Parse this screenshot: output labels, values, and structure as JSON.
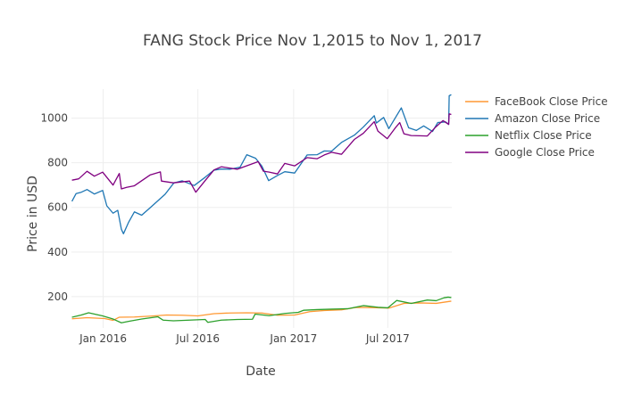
{
  "chart_data": {
    "type": "line",
    "title": "FANG Stock Price Nov 1,2015 to Nov 1, 2017",
    "xlabel": "Date",
    "ylabel": "Price in USD",
    "xlim": [
      "2015-11-01",
      "2017-11-01"
    ],
    "ylim": [
      60,
      1130
    ],
    "x_ticks": [
      {
        "date": "2016-01-01",
        "label": "Jan 2016"
      },
      {
        "date": "2016-07-01",
        "label": "Jul 2016"
      },
      {
        "date": "2017-01-01",
        "label": "Jan 2017"
      },
      {
        "date": "2017-07-01",
        "label": "Jul 2017"
      }
    ],
    "y_ticks": [
      200,
      400,
      600,
      800,
      1000
    ],
    "grid": true,
    "legend_position": "top-right",
    "series": [
      {
        "name": "FaceBook Close Price",
        "color": "#ff9933",
        "points": [
          [
            "2015-11-02",
            101
          ],
          [
            "2015-12-01",
            106
          ],
          [
            "2016-01-04",
            102
          ],
          [
            "2016-01-20",
            94
          ],
          [
            "2016-02-01",
            108
          ],
          [
            "2016-03-01",
            109
          ],
          [
            "2016-04-01",
            113
          ],
          [
            "2016-05-02",
            118
          ],
          [
            "2016-06-01",
            117
          ],
          [
            "2016-07-01",
            114
          ],
          [
            "2016-08-01",
            124
          ],
          [
            "2016-09-01",
            127
          ],
          [
            "2016-10-03",
            128
          ],
          [
            "2016-11-01",
            127
          ],
          [
            "2016-12-01",
            117
          ],
          [
            "2017-01-03",
            118
          ],
          [
            "2017-02-01",
            133
          ],
          [
            "2017-03-01",
            138
          ],
          [
            "2017-04-03",
            141
          ],
          [
            "2017-05-01",
            152
          ],
          [
            "2017-06-01",
            151
          ],
          [
            "2017-07-03",
            149
          ],
          [
            "2017-08-01",
            170
          ],
          [
            "2017-09-01",
            172
          ],
          [
            "2017-10-02",
            170
          ],
          [
            "2017-10-31",
            180
          ]
        ]
      },
      {
        "name": "Amazon Close Price",
        "color": "#1f77b4",
        "points": [
          [
            "2015-11-02",
            627
          ],
          [
            "2015-11-10",
            662
          ],
          [
            "2015-11-20",
            668
          ],
          [
            "2015-12-01",
            680
          ],
          [
            "2015-12-15",
            660
          ],
          [
            "2015-12-31",
            676
          ],
          [
            "2016-01-08",
            607
          ],
          [
            "2016-01-20",
            574
          ],
          [
            "2016-01-29",
            587
          ],
          [
            "2016-02-05",
            502
          ],
          [
            "2016-02-09",
            482
          ],
          [
            "2016-02-19",
            534
          ],
          [
            "2016-03-01",
            580
          ],
          [
            "2016-03-15",
            565
          ],
          [
            "2016-04-01",
            600
          ],
          [
            "2016-04-29",
            659
          ],
          [
            "2016-05-16",
            710
          ],
          [
            "2016-06-01",
            719
          ],
          [
            "2016-06-24",
            698
          ],
          [
            "2016-07-15",
            735
          ],
          [
            "2016-08-01",
            767
          ],
          [
            "2016-08-15",
            772
          ],
          [
            "2016-09-01",
            771
          ],
          [
            "2016-09-20",
            780
          ],
          [
            "2016-10-03",
            836
          ],
          [
            "2016-10-20",
            820
          ],
          [
            "2016-11-01",
            785
          ],
          [
            "2016-11-14",
            720
          ],
          [
            "2016-12-01",
            743
          ],
          [
            "2016-12-15",
            760
          ],
          [
            "2017-01-03",
            754
          ],
          [
            "2017-01-27",
            835
          ],
          [
            "2017-02-15",
            836
          ],
          [
            "2017-03-01",
            853
          ],
          [
            "2017-03-15",
            852
          ],
          [
            "2017-04-03",
            891
          ],
          [
            "2017-04-28",
            924
          ],
          [
            "2017-05-15",
            960
          ],
          [
            "2017-06-05",
            1011
          ],
          [
            "2017-06-09",
            978
          ],
          [
            "2017-06-23",
            1003
          ],
          [
            "2017-07-03",
            953
          ],
          [
            "2017-07-27",
            1046
          ],
          [
            "2017-08-10",
            957
          ],
          [
            "2017-08-25",
            945
          ],
          [
            "2017-09-08",
            965
          ],
          [
            "2017-09-25",
            940
          ],
          [
            "2017-10-05",
            980
          ],
          [
            "2017-10-20",
            983
          ],
          [
            "2017-10-26",
            972
          ],
          [
            "2017-10-27",
            1100
          ],
          [
            "2017-10-31",
            1105
          ]
        ]
      },
      {
        "name": "Netflix Close Price",
        "color": "#2ca02c",
        "points": [
          [
            "2015-11-02",
            108
          ],
          [
            "2015-11-20",
            118
          ],
          [
            "2015-12-04",
            128
          ],
          [
            "2015-12-31",
            114
          ],
          [
            "2016-01-20",
            100
          ],
          [
            "2016-02-05",
            83
          ],
          [
            "2016-02-20",
            90
          ],
          [
            "2016-03-15",
            100
          ],
          [
            "2016-04-15",
            110
          ],
          [
            "2016-04-25",
            95
          ],
          [
            "2016-05-15",
            92
          ],
          [
            "2016-06-15",
            95
          ],
          [
            "2016-07-15",
            98
          ],
          [
            "2016-07-20",
            85
          ],
          [
            "2016-08-15",
            95
          ],
          [
            "2016-09-15",
            98
          ],
          [
            "2016-10-14",
            99
          ],
          [
            "2016-10-19",
            122
          ],
          [
            "2016-11-15",
            115
          ],
          [
            "2016-12-15",
            125
          ],
          [
            "2017-01-10",
            130
          ],
          [
            "2017-01-20",
            139
          ],
          [
            "2017-02-15",
            142
          ],
          [
            "2017-03-15",
            144
          ],
          [
            "2017-04-15",
            146
          ],
          [
            "2017-05-15",
            160
          ],
          [
            "2017-06-15",
            152
          ],
          [
            "2017-07-01",
            150
          ],
          [
            "2017-07-18",
            183
          ],
          [
            "2017-08-15",
            170
          ],
          [
            "2017-09-15",
            185
          ],
          [
            "2017-10-02",
            182
          ],
          [
            "2017-10-17",
            195
          ],
          [
            "2017-10-25",
            198
          ],
          [
            "2017-10-31",
            196
          ]
        ]
      },
      {
        "name": "Google Close Price",
        "color": "#800080",
        "points": [
          [
            "2015-11-02",
            722
          ],
          [
            "2015-11-15",
            728
          ],
          [
            "2015-12-01",
            762
          ],
          [
            "2015-12-15",
            740
          ],
          [
            "2015-12-31",
            758
          ],
          [
            "2016-01-20",
            700
          ],
          [
            "2016-02-01",
            752
          ],
          [
            "2016-02-05",
            683
          ],
          [
            "2016-02-15",
            690
          ],
          [
            "2016-03-01",
            697
          ],
          [
            "2016-03-31",
            745
          ],
          [
            "2016-04-20",
            759
          ],
          [
            "2016-04-22",
            718
          ],
          [
            "2016-05-15",
            710
          ],
          [
            "2016-06-15",
            718
          ],
          [
            "2016-06-27",
            668
          ],
          [
            "2016-07-15",
            720
          ],
          [
            "2016-08-01",
            768
          ],
          [
            "2016-08-15",
            782
          ],
          [
            "2016-09-15",
            771
          ],
          [
            "2016-10-25",
            805
          ],
          [
            "2016-11-04",
            762
          ],
          [
            "2016-11-15",
            758
          ],
          [
            "2016-12-01",
            750
          ],
          [
            "2016-12-15",
            797
          ],
          [
            "2017-01-03",
            786
          ],
          [
            "2017-01-27",
            823
          ],
          [
            "2017-02-15",
            818
          ],
          [
            "2017-03-01",
            835
          ],
          [
            "2017-03-15",
            847
          ],
          [
            "2017-04-03",
            838
          ],
          [
            "2017-04-28",
            905
          ],
          [
            "2017-05-15",
            932
          ],
          [
            "2017-06-05",
            984
          ],
          [
            "2017-06-12",
            942
          ],
          [
            "2017-06-30",
            908
          ],
          [
            "2017-07-15",
            955
          ],
          [
            "2017-07-24",
            980
          ],
          [
            "2017-08-01",
            930
          ],
          [
            "2017-08-15",
            922
          ],
          [
            "2017-09-01",
            921
          ],
          [
            "2017-09-15",
            920
          ],
          [
            "2017-10-01",
            960
          ],
          [
            "2017-10-15",
            989
          ],
          [
            "2017-10-26",
            972
          ],
          [
            "2017-10-27",
            1019
          ],
          [
            "2017-10-31",
            1016
          ]
        ]
      }
    ]
  }
}
